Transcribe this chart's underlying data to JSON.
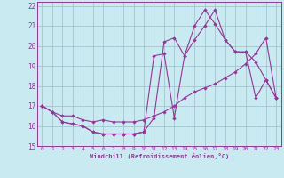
{
  "xlabel": "Windchill (Refroidissement éolien,°C)",
  "bg_color": "#c8eaf0",
  "line_color": "#993399",
  "grid_color": "#9abfc8",
  "xlim": [
    -0.5,
    23.5
  ],
  "ylim": [
    15,
    22.2
  ],
  "xticks": [
    0,
    1,
    2,
    3,
    4,
    5,
    6,
    7,
    8,
    9,
    10,
    11,
    12,
    13,
    14,
    15,
    16,
    17,
    18,
    19,
    20,
    21,
    22,
    23
  ],
  "yticks": [
    15,
    16,
    17,
    18,
    19,
    20,
    21,
    22
  ],
  "line1_x": [
    0,
    1,
    2,
    3,
    4,
    5,
    6,
    7,
    8,
    9,
    10,
    11,
    12,
    13,
    14,
    15,
    16,
    17,
    18,
    19,
    20,
    21,
    22,
    23
  ],
  "line1_y": [
    17.0,
    16.7,
    16.2,
    16.1,
    16.0,
    15.7,
    15.6,
    15.6,
    15.6,
    15.6,
    15.7,
    19.5,
    19.6,
    16.4,
    19.5,
    21.0,
    21.8,
    21.1,
    20.3,
    19.7,
    19.7,
    19.2,
    18.3,
    17.4
  ],
  "line2_x": [
    0,
    1,
    2,
    3,
    4,
    5,
    6,
    7,
    8,
    9,
    10,
    11,
    12,
    13,
    14,
    15,
    16,
    17,
    18,
    19,
    20,
    21,
    22,
    23
  ],
  "line2_y": [
    17.0,
    16.7,
    16.5,
    16.5,
    16.3,
    16.2,
    16.3,
    16.2,
    16.2,
    16.2,
    16.3,
    16.5,
    16.7,
    17.0,
    17.4,
    17.7,
    17.9,
    18.1,
    18.4,
    18.7,
    19.1,
    19.6,
    20.4,
    17.4
  ],
  "line3_x": [
    0,
    1,
    2,
    3,
    4,
    5,
    6,
    7,
    8,
    9,
    10,
    11,
    12,
    13,
    14,
    15,
    16,
    17,
    18,
    19,
    20,
    21,
    22,
    23
  ],
  "line3_y": [
    17.0,
    16.7,
    16.2,
    16.1,
    16.0,
    15.7,
    15.6,
    15.6,
    15.6,
    15.6,
    15.7,
    16.4,
    20.2,
    20.4,
    19.5,
    20.3,
    21.0,
    21.8,
    20.3,
    19.7,
    19.7,
    17.4,
    18.3,
    17.4
  ]
}
